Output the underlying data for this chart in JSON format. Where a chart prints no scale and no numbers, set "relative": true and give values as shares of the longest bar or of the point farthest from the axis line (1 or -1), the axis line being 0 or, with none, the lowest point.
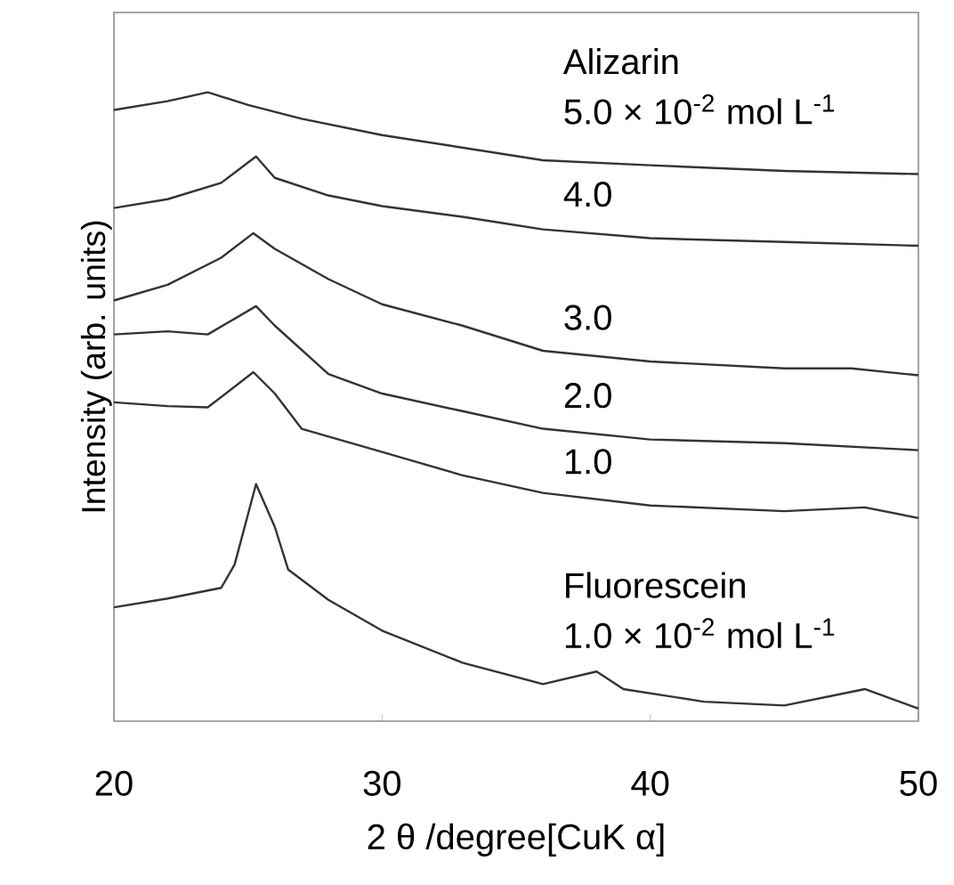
{
  "chart_data": {
    "type": "line",
    "relative": true,
    "xlabel": "2 θ /degree[CuK α]",
    "ylabel": "Intensity (arb. units)",
    "xlim": [
      20,
      50
    ],
    "xticks": [
      20,
      30,
      40,
      50
    ],
    "grid": false,
    "marker": "none",
    "line_style": "solid",
    "annotations": [
      "Alizarin",
      "Fluorescein"
    ],
    "series": [
      {
        "name": "5.0 × 10$^{-2}$ mol L$^{-1}$",
        "color": "#333333",
        "x": [
          20,
          22,
          23.5,
          25,
          27,
          30,
          33,
          36,
          40,
          45,
          50
        ],
        "values": [
          0.972,
          0.986,
          1.0,
          0.98,
          0.958,
          0.932,
          0.912,
          0.892,
          0.884,
          0.875,
          0.87
        ]
      },
      {
        "name": "4.0",
        "color": "#333333",
        "x": [
          20,
          22,
          24,
          25.3,
          26,
          28,
          30,
          33,
          36,
          40,
          45,
          50
        ],
        "values": [
          0.816,
          0.83,
          0.856,
          0.898,
          0.864,
          0.836,
          0.819,
          0.802,
          0.782,
          0.768,
          0.762,
          0.756
        ]
      },
      {
        "name": "3.0",
        "color": "#333333",
        "x": [
          20,
          22,
          24,
          25.2,
          26,
          28,
          30,
          33,
          36,
          40,
          45,
          47.5,
          50
        ],
        "values": [
          0.669,
          0.694,
          0.737,
          0.776,
          0.751,
          0.703,
          0.663,
          0.629,
          0.589,
          0.572,
          0.561,
          0.561,
          0.55
        ]
      },
      {
        "name": "2.0",
        "color": "#333333",
        "x": [
          20,
          22,
          23.5,
          25.3,
          26,
          28,
          30,
          33,
          36,
          40,
          45,
          50
        ],
        "values": [
          0.615,
          0.62,
          0.615,
          0.66,
          0.629,
          0.552,
          0.521,
          0.493,
          0.465,
          0.448,
          0.442,
          0.431
        ]
      },
      {
        "name": "1.0",
        "color": "#333333",
        "x": [
          20,
          22,
          23.5,
          25.2,
          26,
          27,
          30,
          33,
          36,
          40,
          45,
          48,
          50
        ],
        "values": [
          0.507,
          0.501,
          0.499,
          0.555,
          0.521,
          0.465,
          0.428,
          0.391,
          0.363,
          0.343,
          0.334,
          0.34,
          0.323
        ]
      },
      {
        "name": "1.0 × 10$^{-2}$ mol L$^{-1}$",
        "color": "#333333",
        "x": [
          20,
          22,
          24,
          24.5,
          25.3,
          26,
          26.5,
          28,
          30,
          33,
          36,
          38,
          39,
          42,
          45,
          48,
          50
        ],
        "values": [
          0.181,
          0.195,
          0.212,
          0.249,
          0.377,
          0.309,
          0.241,
          0.193,
          0.144,
          0.093,
          0.059,
          0.079,
          0.051,
          0.031,
          0.025,
          0.051,
          0.02
        ]
      }
    ]
  }
}
